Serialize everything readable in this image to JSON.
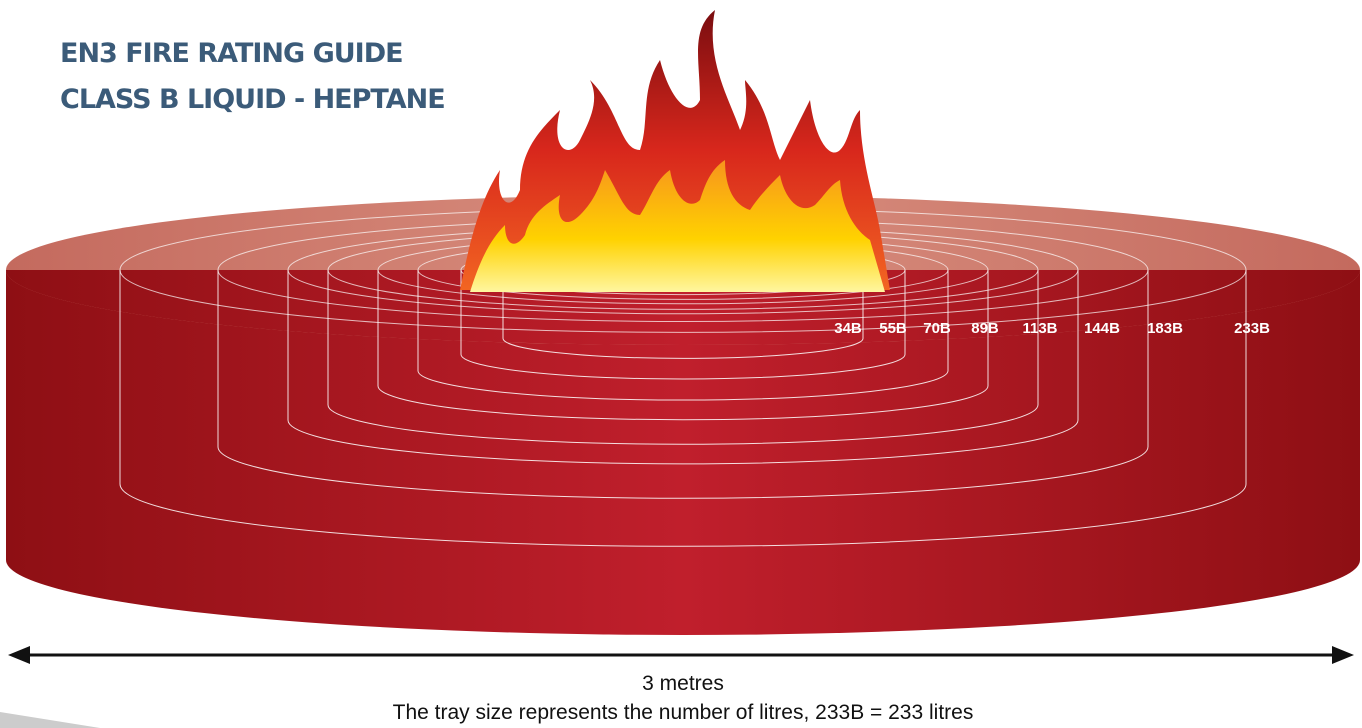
{
  "header": {
    "title_lines": [
      "EN3 FIRE RATING GUIDE",
      "CLASS B LIQUID - HEPTANE"
    ]
  },
  "ratings": [
    "34B",
    "55B",
    "70B",
    "89B",
    "113B",
    "144B",
    "183B",
    "233B"
  ],
  "width_label": "3 metres",
  "caption": "The tray size represents the number of litres, 233B = 233 litres"
}
